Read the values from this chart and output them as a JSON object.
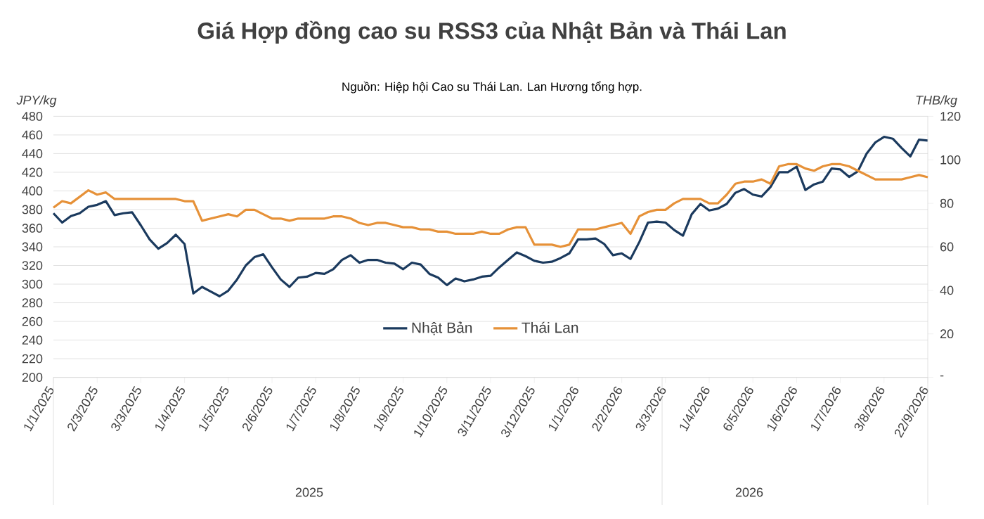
{
  "chart_data": {
    "type": "line",
    "title": "Giá Hợp đồng cao su RSS3 của Nhật Bản và Thái Lan",
    "subtitle": "Nguồn: Hiệp hội Cao su Thái Lan. Lan Hương tổng hợp.",
    "ylabel": "JPY/kg",
    "y2label": "THB/kg",
    "categories": [
      "1/1/2025",
      null,
      null,
      null,
      null,
      "2/3/2025",
      null,
      null,
      null,
      null,
      "3/3/2025",
      null,
      null,
      null,
      null,
      "1/4/2025",
      null,
      null,
      null,
      null,
      "1/5/2025",
      null,
      null,
      null,
      null,
      "2/6/2025",
      null,
      null,
      null,
      null,
      "1/7/2025",
      null,
      null,
      null,
      null,
      "1/8/2025",
      null,
      null,
      null,
      null,
      "1/9/2025",
      null,
      null,
      null,
      null,
      "1/10/2025",
      null,
      null,
      null,
      null,
      "3/11/2025",
      null,
      null,
      null,
      null,
      "3/12/2025",
      null,
      null,
      null,
      null,
      "1/1/2026",
      null,
      null,
      null,
      null,
      "2/2/2026",
      null,
      null,
      null,
      null,
      "3/3/2026",
      null,
      null,
      null,
      null,
      "1/4/2026",
      null,
      null,
      null,
      null,
      "6/5/2026",
      null,
      null,
      null,
      null,
      "1/6/2026",
      null,
      null,
      null,
      null,
      "1/7/2026",
      null,
      null,
      null,
      null,
      "3/8/2026",
      null,
      null,
      null,
      null,
      "22/9/2026"
    ],
    "series": [
      {
        "name": "Nhật Bản",
        "color": "#1b3a5e",
        "values": [
          376,
          366,
          373,
          376,
          383,
          385,
          389,
          374,
          376,
          377,
          363,
          348,
          338,
          344,
          353,
          343,
          290,
          297,
          292,
          287,
          293,
          305,
          320,
          329,
          332,
          318,
          305,
          297,
          307,
          308,
          312,
          311,
          316,
          326,
          331,
          323,
          326,
          326,
          323,
          322,
          316,
          323,
          321,
          311,
          307,
          299,
          306,
          303,
          305,
          308,
          309,
          318,
          326,
          334,
          330,
          325,
          323,
          324,
          328,
          333,
          348,
          348,
          349,
          343,
          331,
          333,
          327,
          345,
          366,
          367,
          366,
          358,
          352,
          375,
          386,
          379,
          381,
          386,
          398,
          402,
          396,
          394,
          404,
          420,
          420,
          426,
          401,
          407,
          410,
          424,
          423,
          415,
          421,
          440,
          452,
          458,
          456,
          446,
          437,
          455,
          454
        ]
      },
      {
        "name": "Thái Lan",
        "color": "#e69138",
        "axis": "y2",
        "values": [
          78,
          81,
          80,
          83,
          86,
          84,
          85,
          82,
          82,
          82,
          82,
          82,
          82,
          82,
          82,
          81,
          81,
          72,
          73,
          74,
          75,
          74,
          77,
          77,
          75,
          73,
          73,
          72,
          73,
          73,
          73,
          73,
          74,
          74,
          73,
          71,
          70,
          71,
          71,
          70,
          69,
          69,
          68,
          68,
          67,
          67,
          66,
          66,
          66,
          67,
          66,
          66,
          68,
          69,
          69,
          61,
          61,
          61,
          60,
          61,
          68,
          68,
          68,
          69,
          70,
          71,
          66,
          74,
          76,
          77,
          77,
          80,
          82,
          82,
          82,
          80,
          80,
          84,
          89,
          90,
          90,
          91,
          89,
          97,
          98,
          98,
          96,
          95,
          97,
          98,
          98,
          97,
          95,
          93,
          91,
          91,
          91,
          91,
          92,
          93,
          92
        ]
      }
    ],
    "ylim": [
      200,
      480
    ],
    "yticks": [
      200,
      220,
      240,
      260,
      280,
      300,
      320,
      340,
      360,
      380,
      400,
      420,
      440,
      460,
      480
    ],
    "y2lim": [
      0,
      120
    ],
    "y2ticks": [
      {
        "value": 0,
        "label": "-"
      },
      20,
      40,
      60,
      80,
      100,
      120
    ],
    "grid": "y",
    "legend": "bottom",
    "annotations": [
      "2025",
      "2026"
    ]
  }
}
